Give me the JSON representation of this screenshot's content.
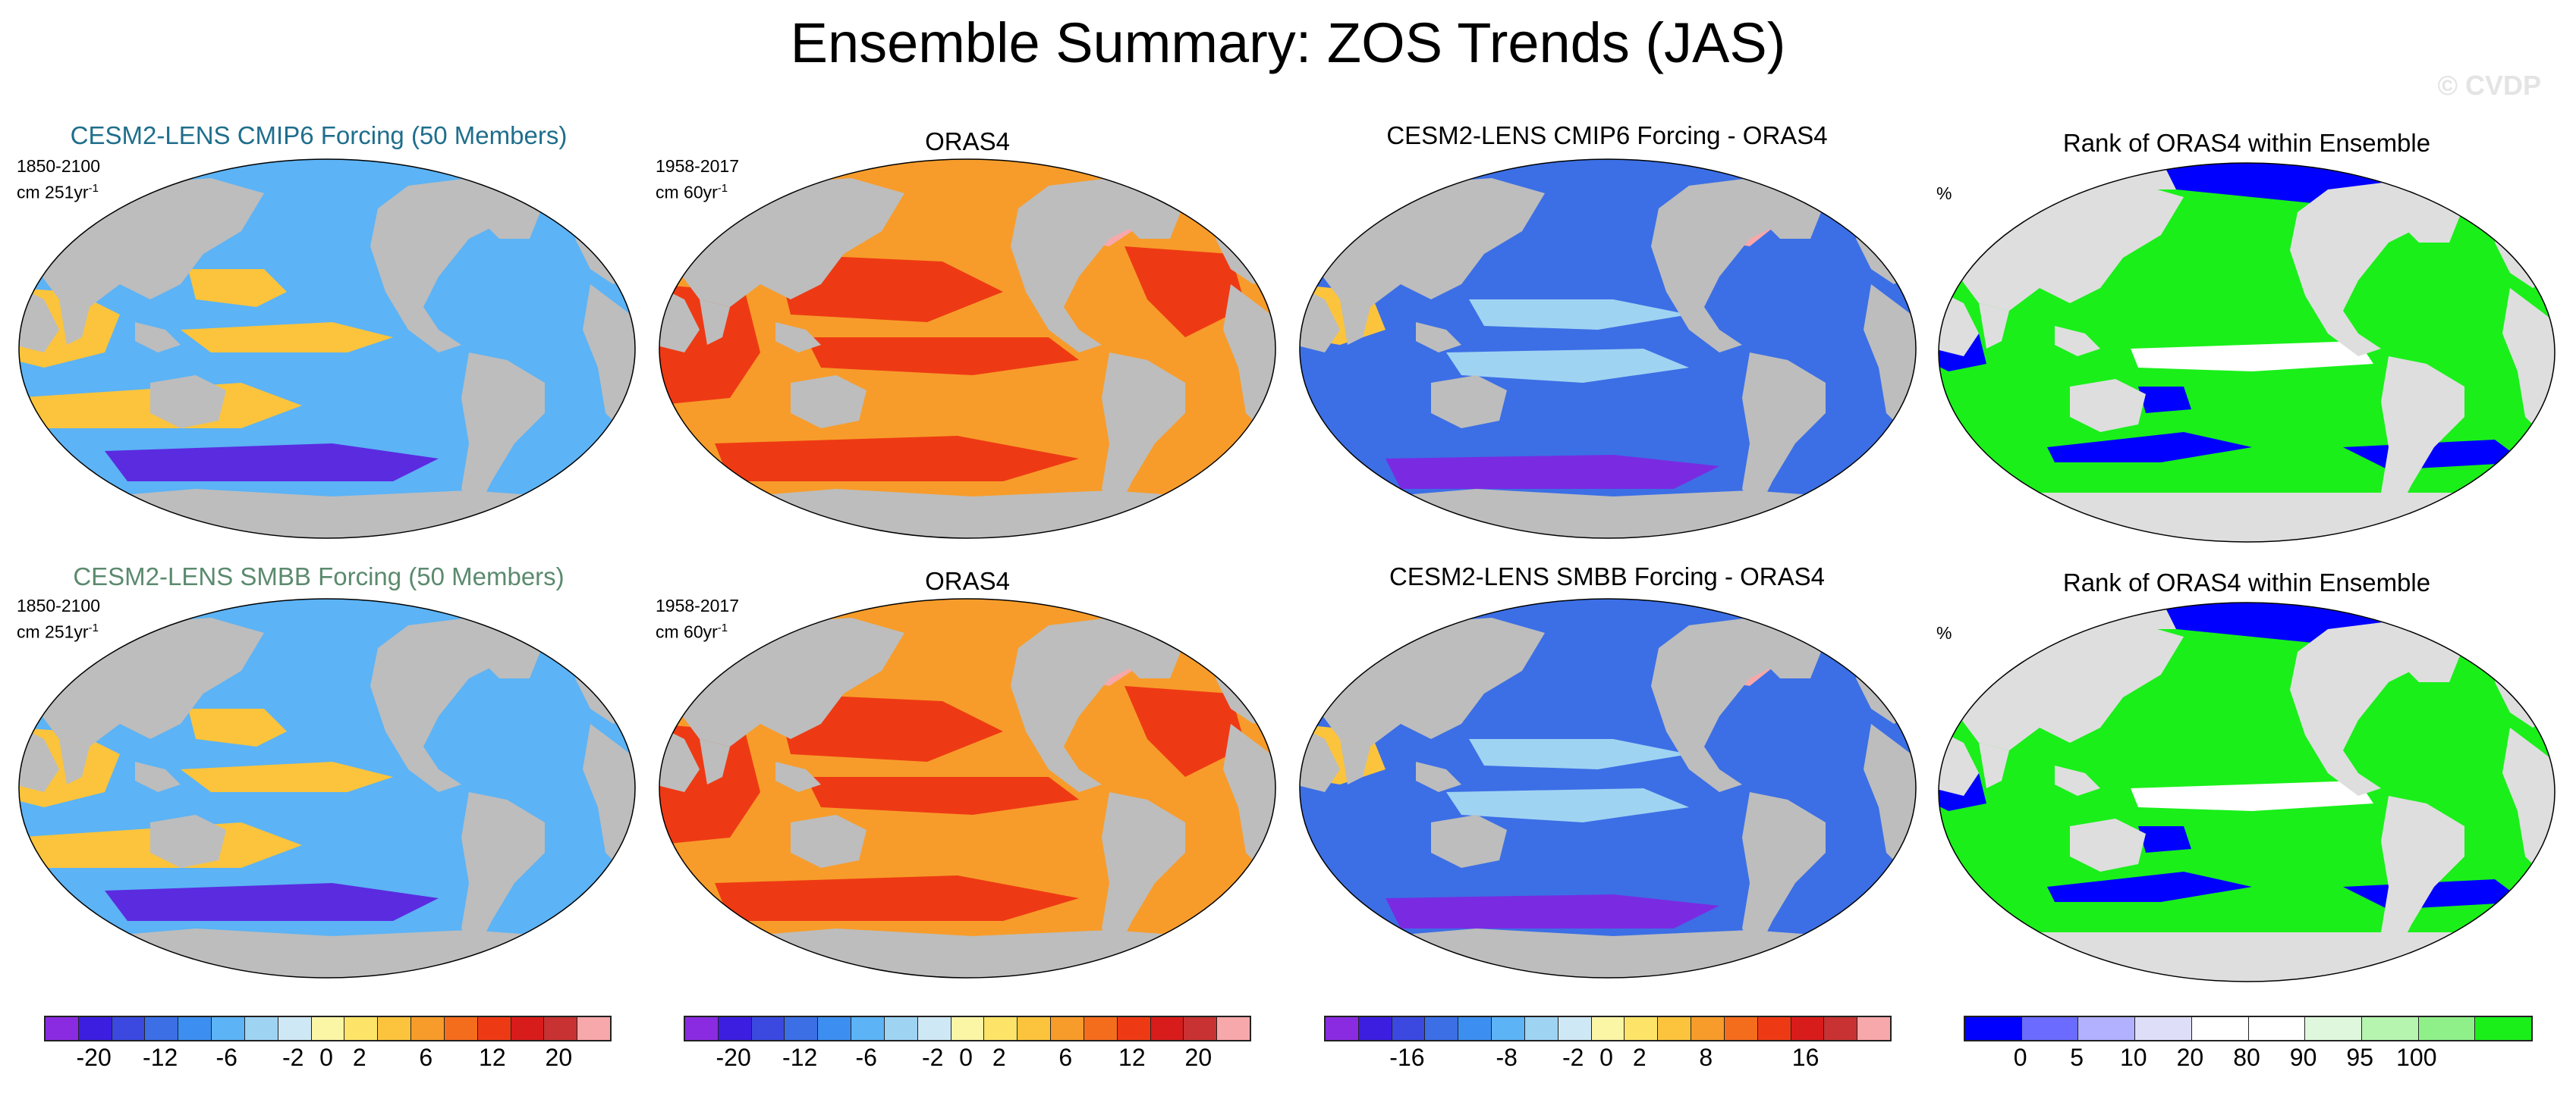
{
  "title": "Ensemble Summary: ZOS Trends (JAS)",
  "watermark": "© CVDP",
  "rows": [
    {
      "ensemble_title": "CESM2-LENS CMIP6 Forcing (50 Members)",
      "ensemble_title_color": "#1f6e8c",
      "ensemble_period": "1850-2100",
      "ensemble_units": "cm 251yr",
      "obs_title": "ORAS4",
      "obs_period": "1958-2017",
      "obs_units": "cm 60yr",
      "units_exponent": "-1",
      "diff_title": "CESM2-LENS CMIP6 Forcing - ORAS4",
      "rank_title": "Rank of ORAS4 within Ensemble",
      "rank_units": "%"
    },
    {
      "ensemble_title": "CESM2-LENS SMBB Forcing (50 Members)",
      "ensemble_title_color": "#5b8a6e",
      "ensemble_period": "1850-2100",
      "ensemble_units": "cm 251yr",
      "obs_title": "ORAS4",
      "obs_period": "1958-2017",
      "obs_units": "cm 60yr",
      "units_exponent": "-1",
      "diff_title": "CESM2-LENS SMBB Forcing - ORAS4",
      "rank_title": "Rank of ORAS4 within Ensemble",
      "rank_units": "%"
    }
  ],
  "colorbars": [
    {
      "name": "trend",
      "colors": [
        "#8a2be2",
        "#3b1ee0",
        "#3b49e0",
        "#3c6fe5",
        "#3c8ff0",
        "#5cb3f5",
        "#9fd3f2",
        "#cfe8f5",
        "#fbf5a6",
        "#fde468",
        "#fbc43c",
        "#f79c2a",
        "#f46d1c",
        "#ee3a14",
        "#d81b1b",
        "#c83232",
        "#f7a8aa"
      ],
      "labels": [
        "-20",
        "-12",
        "-6",
        "-2",
        "0",
        "2",
        "6",
        "12",
        "20"
      ]
    },
    {
      "name": "trend",
      "colors": [
        "#8a2be2",
        "#3b1ee0",
        "#3b49e0",
        "#3c6fe5",
        "#3c8ff0",
        "#5cb3f5",
        "#9fd3f2",
        "#cfe8f5",
        "#fbf5a6",
        "#fde468",
        "#fbc43c",
        "#f79c2a",
        "#f46d1c",
        "#ee3a14",
        "#d81b1b",
        "#c83232",
        "#f7a8aa"
      ],
      "labels": [
        "-20",
        "-12",
        "-6",
        "-2",
        "0",
        "2",
        "6",
        "12",
        "20"
      ]
    },
    {
      "name": "difference",
      "colors": [
        "#8a2be2",
        "#3b1ee0",
        "#3b49e0",
        "#3c6fe5",
        "#3c8ff0",
        "#5cb3f5",
        "#9fd3f2",
        "#cfe8f5",
        "#fbf5a6",
        "#fde468",
        "#fbc43c",
        "#f79c2a",
        "#f46d1c",
        "#ee3a14",
        "#d81b1b",
        "#c83232",
        "#f7a8aa"
      ],
      "labels": [
        "-16",
        "-8",
        "-2",
        "0",
        "2",
        "8",
        "16"
      ]
    },
    {
      "name": "rank",
      "colors": [
        "#0000ff",
        "#6b6bff",
        "#b1b1ff",
        "#dedef8",
        "#ffffff",
        "#ffffff",
        "#dff8dd",
        "#b6f5b0",
        "#8ff08a",
        "#1aef1a"
      ],
      "labels": [
        "0",
        "5",
        "10",
        "20",
        "80",
        "90",
        "95",
        "100"
      ]
    }
  ],
  "field_colors": {
    "land": "#bdbdbd",
    "ocean_background": "#ffffff",
    "rank_land": "#dedede",
    "ensemble_ocean": "#5cb3f5",
    "ensemble_warm": "#fbc43c",
    "ensemble_cold": "#5b2be0",
    "obs_ocean": "#f79c2a",
    "obs_hot": "#ee3a14",
    "obs_pink": "#f7a8aa",
    "diff_ocean": "#3c6fe5",
    "diff_light": "#9fd3f2",
    "diff_purple": "#7a2be2",
    "rank_green": "#1aef1a",
    "rank_blue": "#0000ff",
    "rank_white": "#ffffff"
  }
}
